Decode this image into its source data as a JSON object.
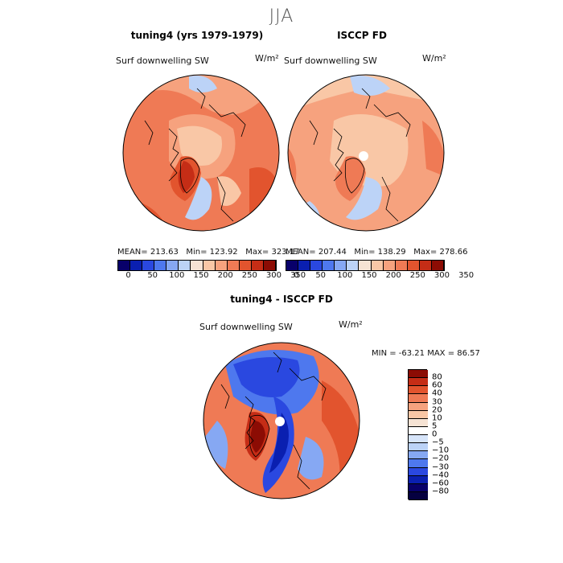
{
  "season": "JJA",
  "colors": {
    "scale": [
      "#08006a",
      "#0a1fb0",
      "#2a48e0",
      "#4e78ee",
      "#86a8f3",
      "#bcd3f7",
      "#f6e3d4",
      "#f9c7a6",
      "#f6a27e",
      "#ef7a55",
      "#e2542e",
      "#c52d16",
      "#8c0c04"
    ],
    "outline": "#000000"
  },
  "chart_data": [
    {
      "type": "heatmap",
      "projection": "north-polar-stereographic",
      "title": "tuning4 (yrs 1979-1979)",
      "variable": "Surf downwelling SW",
      "units": "W/m²",
      "stats": {
        "mean": "MEAN= 213.63",
        "min": "Min= 123.92",
        "max": "Max= 323.17"
      },
      "colorbar_ticks": [
        "0",
        "50",
        "100",
        "150",
        "200",
        "250",
        "300",
        "350"
      ]
    },
    {
      "type": "heatmap",
      "projection": "north-polar-stereographic",
      "title": "ISCCP FD",
      "variable": "Surf downwelling SW",
      "units": "W/m²",
      "stats": {
        "mean": "MEAN= 207.44",
        "min": "Min= 138.29",
        "max": "Max= 278.66"
      },
      "colorbar_ticks": [
        "0",
        "50",
        "100",
        "150",
        "200",
        "250",
        "300",
        "350"
      ]
    },
    {
      "type": "heatmap",
      "projection": "north-polar-stereographic",
      "title": "tuning4 - ISCCP FD",
      "variable": "Surf downwelling SW",
      "units": "W/m²",
      "stats": {
        "minmax": "MIN = -63.21 MAX =  86.57"
      },
      "colorbar_levels": [
        "80",
        "60",
        "40",
        "30",
        "20",
        "10",
        "5",
        "0",
        "-5",
        "-10",
        "-20",
        "-30",
        "-40",
        "-60",
        "-80"
      ]
    }
  ]
}
